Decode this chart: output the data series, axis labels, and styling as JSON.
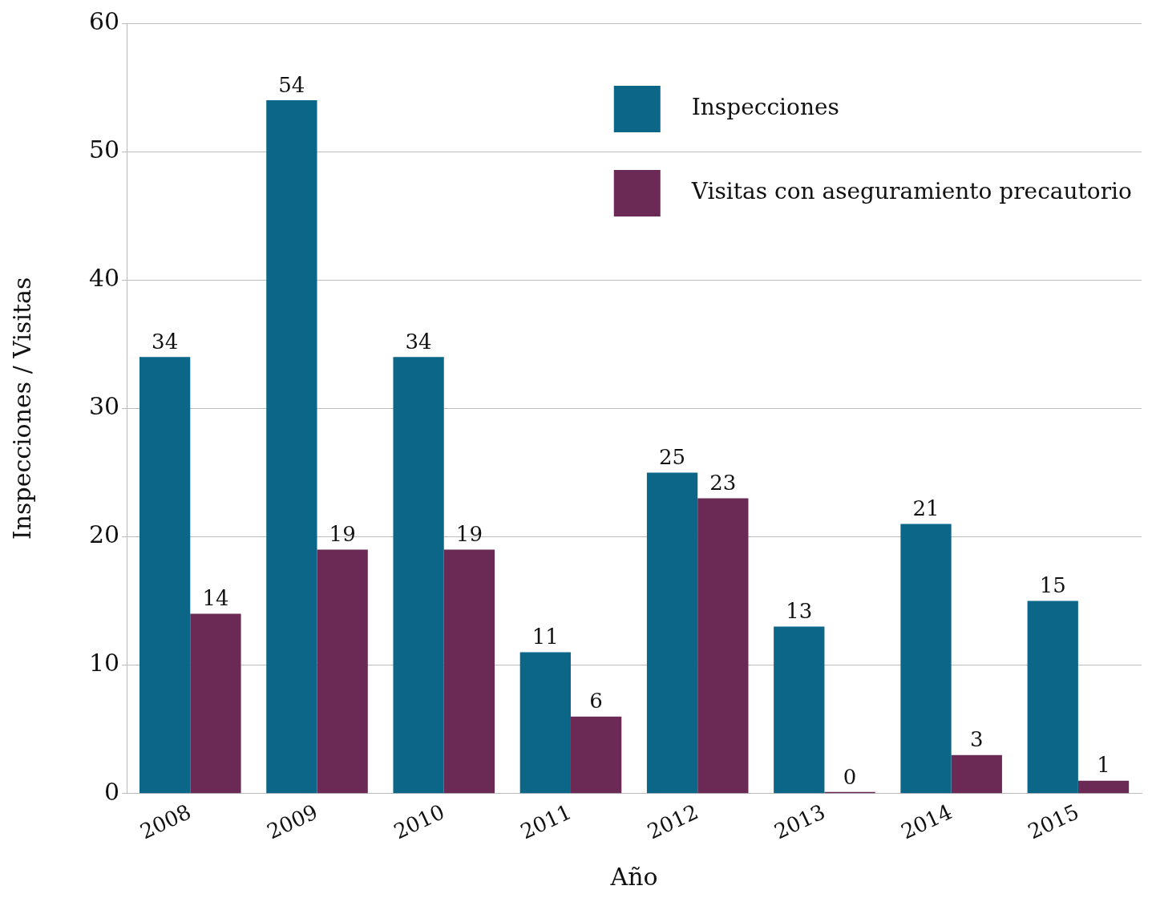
{
  "chart_data": {
    "type": "bar",
    "xlabel": "Año",
    "ylabel": "Inspecciones / Visitas",
    "categories": [
      "2008",
      "2009",
      "2010",
      "2011",
      "2012",
      "2013",
      "2014",
      "2015"
    ],
    "series": [
      {
        "name": "Inspecciones",
        "color": "#0b6688",
        "values": [
          34,
          54,
          34,
          11,
          25,
          13,
          21,
          15
        ]
      },
      {
        "name": "Visitas con aseguramiento precautorio",
        "color": "#6b2a55",
        "values": [
          14,
          19,
          19,
          6,
          23,
          0,
          3,
          1
        ]
      }
    ],
    "ylim": [
      0,
      60
    ],
    "yticks": [
      0,
      10,
      20,
      30,
      40,
      50,
      60
    ],
    "grid": "y",
    "legend": "top right",
    "data_labels": true
  }
}
